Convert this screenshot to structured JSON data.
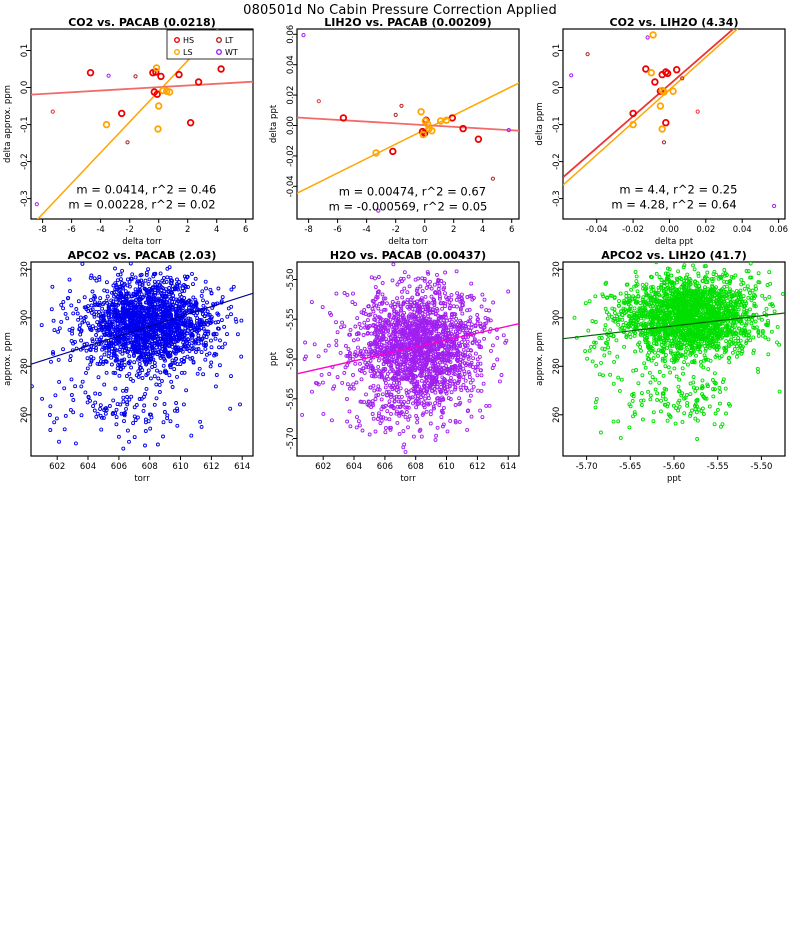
{
  "header": {
    "title": "080501d   No Cabin Pressure Correction Applied"
  },
  "point_groups": {
    "HS": {
      "color": "#EE0000",
      "r": 2.8,
      "sw": 1.8
    },
    "LS": {
      "color": "#FFA500",
      "r": 2.8,
      "sw": 1.8
    },
    "HS_small": {
      "color": "#EE3333",
      "r": 1.6,
      "sw": 1.0
    },
    "LT": {
      "color": "#B22222",
      "r": 1.6,
      "sw": 1.0
    },
    "WT": {
      "color": "#A020F0",
      "r": 1.6,
      "sw": 1.0
    }
  },
  "chart_data": [
    {
      "type": "scatter",
      "title": "CO2 vs. PACAB (0.0218)",
      "xlabel": "delta torr",
      "ylabel": "delta approx. ppm",
      "xlim": [
        -8.8,
        6.5
      ],
      "ylim": [
        -0.355,
        0.158
      ],
      "xticks": [
        {
          "v": -8,
          "l": "-8"
        },
        {
          "v": -6,
          "l": "-6"
        },
        {
          "v": -4,
          "l": "-4"
        },
        {
          "v": -2,
          "l": "-2"
        },
        {
          "v": 0,
          "l": "0"
        },
        {
          "v": 2,
          "l": "2"
        },
        {
          "v": 4,
          "l": "4"
        },
        {
          "v": 6,
          "l": "6"
        }
      ],
      "yticks": [
        {
          "v": 0.1,
          "l": "0.1"
        },
        {
          "v": 0.0,
          "l": "0.0"
        },
        {
          "v": -0.1,
          "l": "-0.1"
        },
        {
          "v": -0.2,
          "l": "-0.2"
        },
        {
          "v": -0.3,
          "l": "-0.3"
        }
      ],
      "legend": {
        "items": [
          {
            "label": "HS",
            "group": "HS"
          },
          {
            "label": "LS",
            "group": "LS"
          },
          {
            "label": "LT",
            "group": "LT"
          },
          {
            "label": "WT",
            "group": "WT"
          }
        ]
      },
      "lines": [
        {
          "m": 0.0414,
          "b": -0.01,
          "color": "#FFA500",
          "w": 1.5
        },
        {
          "m": 0.00228,
          "b": 0.001,
          "color": "#F26B6B",
          "w": 1.8
        }
      ],
      "annotations": [
        {
          "text": "m = 0.0414, r^2 = 0.46",
          "color": "#FFA500",
          "fx": 0.52,
          "fy": 0.865
        },
        {
          "text": "m = 0.00228, r^2 = 0.02",
          "color": "#EE0000",
          "fx": 0.5,
          "fy": 0.945
        }
      ],
      "points": {
        "HS": [
          [
            -4.7,
            0.04
          ],
          [
            -2.55,
            -0.07
          ],
          [
            -0.4,
            0.04
          ],
          [
            -0.2,
            0.042
          ],
          [
            -0.3,
            -0.012
          ],
          [
            -0.1,
            -0.018
          ],
          [
            0.15,
            0.03
          ],
          [
            1.4,
            0.035
          ],
          [
            2.75,
            0.015
          ],
          [
            4.3,
            0.05
          ],
          [
            2.2,
            -0.095
          ]
        ],
        "LS": [
          [
            1.55,
            0.142
          ],
          [
            -0.15,
            0.053
          ],
          [
            0.3,
            -0.008
          ],
          [
            0.55,
            -0.01
          ],
          [
            0.75,
            -0.012
          ],
          [
            0.0,
            -0.05
          ],
          [
            -0.05,
            -0.112
          ],
          [
            -3.6,
            -0.1
          ]
        ],
        "HS_small": [
          [
            -7.3,
            -0.065
          ]
        ],
        "LT": [
          [
            -1.6,
            0.03
          ],
          [
            -2.15,
            -0.148
          ]
        ],
        "WT": [
          [
            -3.45,
            0.032
          ],
          [
            -8.4,
            -0.315
          ]
        ]
      }
    },
    {
      "type": "scatter",
      "title": "LIH2O vs. PACAB (0.00209)",
      "xlabel": "delta torr",
      "ylabel": "delta ppt",
      "xlim": [
        -8.8,
        6.5
      ],
      "ylim": [
        -0.0615,
        0.0635
      ],
      "xticks": [
        {
          "v": -8,
          "l": "-8"
        },
        {
          "v": -6,
          "l": "-6"
        },
        {
          "v": -4,
          "l": "-4"
        },
        {
          "v": -2,
          "l": "-2"
        },
        {
          "v": 0,
          "l": "0"
        },
        {
          "v": 2,
          "l": "2"
        },
        {
          "v": 4,
          "l": "4"
        },
        {
          "v": 6,
          "l": "6"
        }
      ],
      "yticks": [
        {
          "v": 0.06,
          "l": "0.06"
        },
        {
          "v": 0.04,
          "l": "0.04"
        },
        {
          "v": 0.02,
          "l": "0.02"
        },
        {
          "v": 0.0,
          "l": "0.00"
        },
        {
          "v": -0.02,
          "l": "-0.02"
        },
        {
          "v": -0.04,
          "l": "-0.04"
        }
      ],
      "lines": [
        {
          "m": 0.00474,
          "b": -0.0028,
          "color": "#FFA500",
          "w": 1.5
        },
        {
          "m": -0.000569,
          "b": 0.0003,
          "color": "#F26B6B",
          "w": 1.8
        }
      ],
      "annotations": [
        {
          "text": "m = 0.00474, r^2 = 0.67",
          "color": "#FFA500",
          "fx": 0.52,
          "fy": 0.875
        },
        {
          "text": "m = -0.000569, r^2 = 0.05",
          "color": "#EE0000",
          "fx": 0.5,
          "fy": 0.955
        }
      ],
      "points": {
        "HS": [
          [
            -5.6,
            0.005
          ],
          [
            -2.2,
            -0.017
          ],
          [
            -0.15,
            -0.004
          ],
          [
            0.0,
            -0.005
          ],
          [
            0.1,
            0.0035
          ],
          [
            1.9,
            0.005
          ],
          [
            2.65,
            -0.002
          ],
          [
            3.7,
            -0.009
          ]
        ],
        "LS": [
          [
            -3.35,
            -0.018
          ],
          [
            -0.25,
            0.009
          ],
          [
            0.05,
            0.003
          ],
          [
            0.2,
            0.001
          ],
          [
            0.3,
            -0.002
          ],
          [
            0.5,
            -0.0035
          ],
          [
            -0.1,
            -0.006
          ],
          [
            1.1,
            0.003
          ],
          [
            1.5,
            0.0035
          ]
        ],
        "HS_small": [
          [
            -7.3,
            0.016
          ]
        ],
        "LT": [
          [
            -1.6,
            0.013
          ],
          [
            -2.0,
            0.007
          ],
          [
            4.7,
            -0.035
          ]
        ],
        "WT": [
          [
            -8.35,
            0.0595
          ],
          [
            5.8,
            -0.003
          ],
          [
            -3.2,
            -0.056
          ]
        ]
      }
    },
    {
      "type": "scatter",
      "title": "CO2 vs. LIH2O (4.34)",
      "xlabel": "delta ppt",
      "ylabel": "delta ppm",
      "xlim": [
        -0.0585,
        0.0635
      ],
      "ylim": [
        -0.355,
        0.158
      ],
      "xticks": [
        {
          "v": -0.04,
          "l": "-0.04"
        },
        {
          "v": -0.02,
          "l": "-0.02"
        },
        {
          "v": 0.0,
          "l": "0.00"
        },
        {
          "v": 0.02,
          "l": "0.02"
        },
        {
          "v": 0.04,
          "l": "0.04"
        },
        {
          "v": 0.06,
          "l": "0.06"
        }
      ],
      "yticks": [
        {
          "v": 0.1,
          "l": "0.1"
        },
        {
          "v": 0.0,
          "l": "0.0"
        },
        {
          "v": -0.1,
          "l": "-0.1"
        },
        {
          "v": -0.2,
          "l": "-0.2"
        },
        {
          "v": -0.3,
          "l": "-0.3"
        }
      ],
      "lines": [
        {
          "m": 4.4,
          "b": -0.006,
          "color": "#FFA500",
          "w": 1.5
        },
        {
          "m": 4.28,
          "b": 0.008,
          "color": "#EE3333",
          "w": 1.8
        }
      ],
      "annotations": [
        {
          "text": "m = 4.4, r^2 = 0.25",
          "color": "#FFA500",
          "fx": 0.52,
          "fy": 0.865
        },
        {
          "text": "m = 4.28, r^2 = 0.64",
          "color": "#EE0000",
          "fx": 0.5,
          "fy": 0.945
        }
      ],
      "points": {
        "HS": [
          [
            -0.013,
            0.05
          ],
          [
            -0.008,
            0.015
          ],
          [
            -0.004,
            0.035
          ],
          [
            -0.002,
            0.042
          ],
          [
            -0.001,
            0.038
          ],
          [
            0.004,
            0.048
          ],
          [
            -0.005,
            -0.01
          ],
          [
            -0.02,
            -0.07
          ],
          [
            -0.002,
            -0.095
          ]
        ],
        "LS": [
          [
            -0.009,
            0.142
          ],
          [
            -0.01,
            0.04
          ],
          [
            -0.004,
            -0.008
          ],
          [
            -0.003,
            -0.012
          ],
          [
            0.002,
            -0.01
          ],
          [
            -0.005,
            -0.05
          ],
          [
            -0.004,
            -0.112
          ],
          [
            -0.02,
            -0.1
          ]
        ],
        "HS_small": [
          [
            0.0155,
            -0.065
          ]
        ],
        "LT": [
          [
            -0.045,
            0.09
          ],
          [
            0.007,
            0.025
          ],
          [
            -0.003,
            -0.148
          ]
        ],
        "WT": [
          [
            -0.054,
            0.033
          ],
          [
            -0.012,
            0.135
          ],
          [
            0.0575,
            -0.32
          ]
        ]
      }
    },
    {
      "type": "scatter",
      "title": "APCO2 vs. PACAB (2.03)",
      "xlabel": "torr",
      "ylabel": "approx. ppm",
      "xlim": [
        600.3,
        614.7
      ],
      "ylim": [
        243,
        323
      ],
      "xticks": [
        {
          "v": 602,
          "l": "602"
        },
        {
          "v": 604,
          "l": "604"
        },
        {
          "v": 606,
          "l": "606"
        },
        {
          "v": 608,
          "l": "608"
        },
        {
          "v": 610,
          "l": "610"
        },
        {
          "v": 612,
          "l": "612"
        },
        {
          "v": 614,
          "l": "614"
        }
      ],
      "yticks": [
        {
          "v": 260,
          "l": "260"
        },
        {
          "v": 280,
          "l": "280"
        },
        {
          "v": 300,
          "l": "300"
        },
        {
          "v": 320,
          "l": "320"
        }
      ],
      "cloud_color": "#0000EE",
      "clouds": [
        {
          "n": 1900,
          "cx": 607.9,
          "cy": 297.5,
          "sx": 2.05,
          "sy": 9.2,
          "seed": 42
        },
        {
          "n": 130,
          "cx": 606.6,
          "cy": 263.0,
          "sx": 2.4,
          "sy": 7.5,
          "seed": 7
        },
        {
          "n": 25,
          "cx": 602.3,
          "cy": 293.0,
          "sx": 0.9,
          "sy": 9.0,
          "seed": 13
        }
      ],
      "lines": [
        {
          "m": 2.03,
          "b": -937.74,
          "color": "#00008B",
          "w": 1.2
        }
      ]
    },
    {
      "type": "scatter",
      "title": "H2O vs. PACAB (0.00437)",
      "xlabel": "torr",
      "ylabel": "ppt",
      "xlim": [
        600.3,
        614.7
      ],
      "ylim": [
        -5.722,
        -5.478
      ],
      "xticks": [
        {
          "v": 602,
          "l": "602"
        },
        {
          "v": 604,
          "l": "604"
        },
        {
          "v": 606,
          "l": "606"
        },
        {
          "v": 608,
          "l": "608"
        },
        {
          "v": 610,
          "l": "610"
        },
        {
          "v": 612,
          "l": "612"
        },
        {
          "v": 614,
          "l": "614"
        }
      ],
      "yticks": [
        {
          "v": -5.5,
          "l": "-5.50"
        },
        {
          "v": -5.55,
          "l": "-5.55"
        },
        {
          "v": -5.6,
          "l": "-5.60"
        },
        {
          "v": -5.65,
          "l": "-5.65"
        },
        {
          "v": -5.7,
          "l": "-5.70"
        }
      ],
      "cloud_color": "#A020F0",
      "clouds": [
        {
          "n": 1900,
          "cx": 608.2,
          "cy": -5.583,
          "sx": 2.0,
          "sy": 0.038,
          "seed": 11
        },
        {
          "n": 90,
          "cx": 607.0,
          "cy": -5.663,
          "sx": 2.2,
          "sy": 0.02,
          "seed": 3
        },
        {
          "n": 30,
          "cx": 602.5,
          "cy": -5.6,
          "sx": 1.0,
          "sy": 0.035,
          "seed": 21
        }
      ],
      "lines": [
        {
          "m": 0.00437,
          "b": -8.2419,
          "color": "#FF00CC",
          "w": 1.4
        }
      ]
    },
    {
      "type": "scatter",
      "title": "APCO2 vs. LIH2O (41.7)",
      "xlabel": "ppt",
      "ylabel": "approx. ppm",
      "xlim": [
        -5.727,
        -5.473
      ],
      "ylim": [
        243,
        323
      ],
      "xticks": [
        {
          "v": -5.7,
          "l": "-5.70"
        },
        {
          "v": -5.65,
          "l": "-5.65"
        },
        {
          "v": -5.6,
          "l": "-5.60"
        },
        {
          "v": -5.55,
          "l": "-5.55"
        },
        {
          "v": -5.5,
          "l": "-5.50"
        }
      ],
      "yticks": [
        {
          "v": 260,
          "l": "260"
        },
        {
          "v": 280,
          "l": "280"
        },
        {
          "v": 300,
          "l": "300"
        },
        {
          "v": 320,
          "l": "320"
        }
      ],
      "cloud_color": "#00DF00",
      "clouds": [
        {
          "n": 2100,
          "cx": -5.583,
          "cy": 300.5,
          "sx": 0.04,
          "sy": 8.2,
          "seed": 5
        },
        {
          "n": 150,
          "cx": -5.593,
          "cy": 266.0,
          "sx": 0.038,
          "sy": 8.0,
          "seed": 9
        },
        {
          "n": 30,
          "cx": -5.683,
          "cy": 290.0,
          "sx": 0.012,
          "sy": 9.0,
          "seed": 17
        }
      ],
      "lines": [
        {
          "m": 41.7,
          "b": 530.19,
          "color": "#006400",
          "w": 1.2
        }
      ]
    }
  ]
}
